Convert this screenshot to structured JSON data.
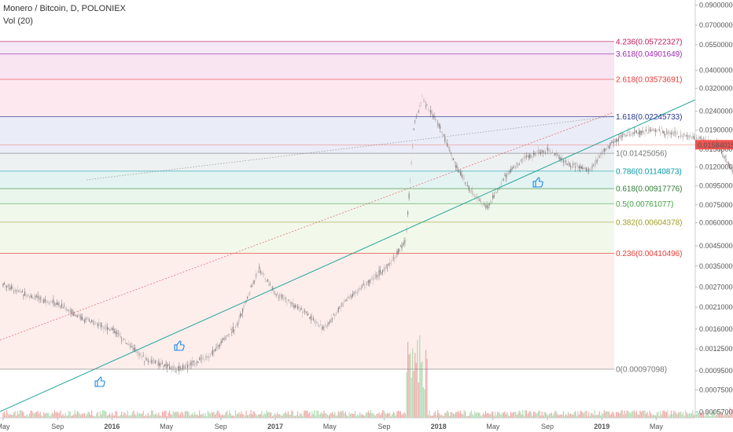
{
  "header": {
    "title": "Monero / Bitcoin, D, POLONIEX",
    "indicator": "Vol (20)"
  },
  "chart_data": {
    "type": "candlestick",
    "log_scale": true,
    "grid": false,
    "x_axis": {
      "tick_labels": [
        "May",
        "Sep",
        "2016",
        "May",
        "Sep",
        "2017",
        "May",
        "Sep",
        "2018",
        "May",
        "Sep",
        "2019",
        "May"
      ]
    },
    "y_axis": {
      "position": "right",
      "tick_labels": [
        "0.09000000",
        "0.07000000",
        "0.05500000",
        "0.04000000",
        "0.03200000",
        "0.02400000",
        "0.01900000",
        "0.01500000",
        "0.01200000",
        "0.00950000",
        "0.00750000",
        "0.00600000",
        "0.00450000",
        "0.00350000",
        "0.00270000",
        "0.00210000",
        "0.00160000",
        "0.00125000",
        "0.00095000",
        "0.00075000",
        "0.00057000"
      ],
      "tick_values": [
        0.09,
        0.07,
        0.055,
        0.04,
        0.032,
        0.024,
        0.019,
        0.015,
        0.012,
        0.0095,
        0.0075,
        0.006,
        0.0045,
        0.0035,
        0.0027,
        0.0021,
        0.0016,
        0.00125,
        0.00095,
        0.00075,
        0.00057
      ]
    },
    "last_price": {
      "label": "0.01584015",
      "value": 0.01584015,
      "color": "#ef5350"
    },
    "fib_levels": [
      {
        "label": "4.236(0.05722327)",
        "value": 0.05722327,
        "color": "#c2185b"
      },
      {
        "label": "3.618(0.04901649)",
        "value": 0.04901649,
        "color": "#9c27b0"
      },
      {
        "label": "2.618(0.03573691)",
        "value": 0.03573691,
        "color": "#e53935"
      },
      {
        "label": "1.618(0.02245733)",
        "value": 0.02245733,
        "color": "#283593"
      },
      {
        "label": "1(0.01425056)",
        "value": 0.01425056,
        "color": "#757575"
      },
      {
        "label": "0.786(0.01140873)",
        "value": 0.01140873,
        "color": "#0097a7"
      },
      {
        "label": "0.618(0.00917776)",
        "value": 0.00917776,
        "color": "#2e7d32"
      },
      {
        "label": "0.5(0.00761077)",
        "value": 0.00761077,
        "color": "#43a047"
      },
      {
        "label": "0.382(0.00604378)",
        "value": 0.00604378,
        "color": "#9e9d24"
      },
      {
        "label": "0.236(0.00410496)",
        "value": 0.00410496,
        "color": "#e53935"
      },
      {
        "label": "0(0.00097098)",
        "value": 0.00097098,
        "color": "#757575"
      }
    ],
    "price_path": [
      [
        0,
        0.0028
      ],
      [
        0.5,
        0.0024
      ],
      [
        1.0,
        0.0022
      ],
      [
        1.5,
        0.0018
      ],
      [
        2.0,
        0.0016
      ],
      [
        2.6,
        0.0011
      ],
      [
        3.2,
        0.00097
      ],
      [
        3.8,
        0.00115
      ],
      [
        4.3,
        0.0017
      ],
      [
        4.7,
        0.0034
      ],
      [
        5.0,
        0.0025
      ],
      [
        5.5,
        0.002
      ],
      [
        5.9,
        0.0016
      ],
      [
        6.3,
        0.0023
      ],
      [
        6.8,
        0.003
      ],
      [
        7.1,
        0.0036
      ],
      [
        7.4,
        0.0048
      ],
      [
        7.55,
        0.02
      ],
      [
        7.7,
        0.028
      ],
      [
        8.0,
        0.0205
      ],
      [
        8.3,
        0.0125
      ],
      [
        8.6,
        0.0088
      ],
      [
        8.9,
        0.0072
      ],
      [
        9.2,
        0.0105
      ],
      [
        9.6,
        0.0135
      ],
      [
        10.0,
        0.015
      ],
      [
        10.4,
        0.0125
      ],
      [
        10.8,
        0.0115
      ],
      [
        11.0,
        0.0145
      ],
      [
        11.4,
        0.018
      ],
      [
        12.0,
        0.019
      ],
      [
        12.6,
        0.0175
      ],
      [
        13.1,
        0.016
      ],
      [
        13.4,
        0.0115
      ],
      [
        13.6,
        0.031
      ],
      [
        14.0,
        0.03
      ],
      [
        14.4,
        0.018
      ],
      [
        14.7,
        0.0145
      ],
      [
        15.0,
        0.0118
      ],
      [
        15.3,
        0.016
      ],
      [
        15.7,
        0.023
      ],
      [
        16.1,
        0.025
      ],
      [
        16.5,
        0.029
      ],
      [
        17.0,
        0.032
      ],
      [
        17.4,
        0.028
      ],
      [
        17.8,
        0.03
      ],
      [
        18.2,
        0.023
      ],
      [
        18.6,
        0.02
      ],
      [
        19.0,
        0.0175
      ],
      [
        19.3,
        0.0158
      ]
    ],
    "projection": [
      [
        19.3,
        0.0158
      ],
      [
        19.75,
        0.0122
      ],
      [
        20.3,
        0.02
      ],
      [
        20.65,
        0.027
      ]
    ]
  }
}
